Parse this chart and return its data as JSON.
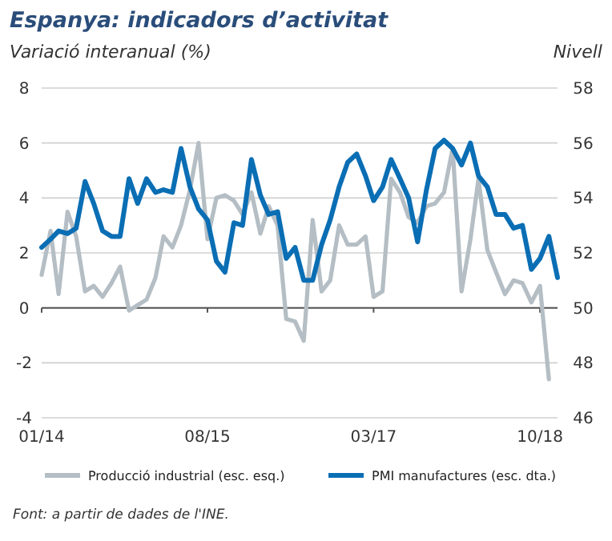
{
  "chart_data": {
    "type": "line",
    "title": "Espanya: indicadors d’activitat",
    "ylabel": "Variació interanual (%)",
    "y2label": "Nivell",
    "x": [
      "2014-01",
      "2014-02",
      "2014-03",
      "2014-04",
      "2014-05",
      "2014-06",
      "2014-07",
      "2014-08",
      "2014-09",
      "2014-10",
      "2014-11",
      "2014-12",
      "2015-01",
      "2015-02",
      "2015-03",
      "2015-04",
      "2015-05",
      "2015-06",
      "2015-07",
      "2015-08",
      "2015-09",
      "2015-10",
      "2015-11",
      "2015-12",
      "2016-01",
      "2016-02",
      "2016-03",
      "2016-04",
      "2016-05",
      "2016-06",
      "2016-07",
      "2016-08",
      "2016-09",
      "2016-10",
      "2016-11",
      "2016-12",
      "2017-01",
      "2017-02",
      "2017-03",
      "2017-04",
      "2017-05",
      "2017-06",
      "2017-07",
      "2017-08",
      "2017-09",
      "2017-10",
      "2017-11",
      "2017-12",
      "2018-01",
      "2018-02",
      "2018-03",
      "2018-04",
      "2018-05",
      "2018-06",
      "2018-07",
      "2018-08",
      "2018-09",
      "2018-10",
      "2018-11",
      "2018-12"
    ],
    "series": [
      {
        "name": "Producció industrial (esc. esq.)",
        "color": "#b4bec4",
        "values": [
          1.2,
          2.8,
          0.5,
          3.5,
          2.6,
          0.6,
          0.8,
          0.4,
          0.9,
          1.5,
          -0.1,
          0.1,
          0.3,
          1.1,
          2.6,
          2.2,
          3.0,
          4.3,
          6.0,
          2.5,
          4.0,
          4.1,
          3.9,
          3.4,
          4.2,
          2.7,
          3.7,
          3.0,
          -0.4,
          -0.5,
          -1.2,
          3.2,
          0.6,
          1.0,
          3.0,
          2.3,
          2.3,
          2.6,
          0.4,
          0.6,
          4.7,
          4.2,
          3.3,
          3.1,
          3.7,
          3.8,
          4.2,
          5.8,
          0.6,
          2.5,
          4.7,
          2.1,
          1.3,
          0.5,
          1.0,
          0.9,
          0.2,
          0.8,
          -2.6,
          null
        ]
      },
      {
        "name": "PMI manufactures (esc. dta.)",
        "color": "#0a6eb4",
        "axis": "y2",
        "values": [
          52.2,
          52.5,
          52.8,
          52.7,
          52.9,
          54.6,
          53.8,
          52.8,
          52.6,
          52.6,
          54.7,
          53.8,
          54.7,
          54.2,
          54.3,
          54.2,
          55.8,
          54.4,
          53.6,
          53.2,
          51.7,
          51.3,
          53.1,
          53.0,
          55.4,
          54.1,
          53.4,
          53.5,
          51.8,
          52.2,
          51.0,
          51.0,
          52.3,
          53.2,
          54.4,
          55.3,
          55.6,
          54.8,
          53.9,
          54.4,
          55.4,
          54.7,
          54.0,
          52.4,
          54.3,
          55.8,
          56.1,
          55.8,
          55.2,
          56.0,
          54.8,
          54.4,
          53.4,
          53.4,
          52.9,
          53.0,
          51.4,
          51.8,
          52.6,
          51.1
        ]
      }
    ],
    "xlim": [
      "2014-01",
      "2018-12"
    ],
    "xticks": [
      {
        "value": "2014-01",
        "label": "01/14"
      },
      {
        "value": "2015-08",
        "label": "08/15"
      },
      {
        "value": "2017-03",
        "label": "03/17"
      },
      {
        "value": "2018-10",
        "label": "10/18"
      }
    ],
    "ylim": [
      -4,
      8
    ],
    "yticks": [
      -4,
      -2,
      0,
      2,
      4,
      6,
      8
    ],
    "y2lim": [
      46,
      58
    ],
    "y2ticks": [
      46,
      48,
      50,
      52,
      54,
      56,
      58
    ],
    "grid": "y",
    "legend": "bottom",
    "line_style": "solid",
    "marker": "none",
    "annotations": [
      "Font: a partir de dades de l'INE."
    ]
  }
}
